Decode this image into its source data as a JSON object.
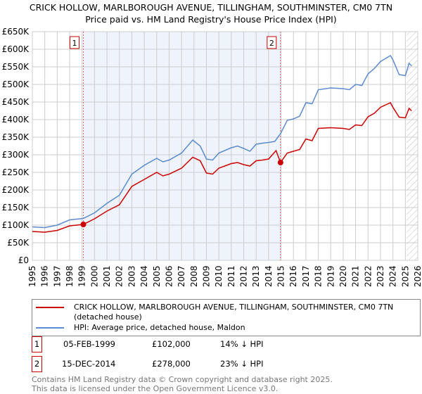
{
  "chart_data": {
    "type": "line",
    "title": "CRICK HOLLOW, MARLBOROUGH AVENUE, TILLINGHAM, SOUTHMINSTER, CM0 7TN",
    "subtitle": "Price paid vs. HM Land Registry's House Price Index (HPI)",
    "xlim": [
      1995,
      2026
    ],
    "ylim": [
      0,
      650000
    ],
    "x_ticks": [
      "1995",
      "1996",
      "1997",
      "1998",
      "1999",
      "2000",
      "2001",
      "2002",
      "2003",
      "2004",
      "2005",
      "2006",
      "2007",
      "2008",
      "2009",
      "2010",
      "2011",
      "2012",
      "2013",
      "2014",
      "2015",
      "2016",
      "2017",
      "2018",
      "2019",
      "2020",
      "2021",
      "2022",
      "2023",
      "2024",
      "2025",
      "2026"
    ],
    "y_ticks": [
      {
        "v": 0,
        "label": "£0"
      },
      {
        "v": 50000,
        "label": "£50K"
      },
      {
        "v": 100000,
        "label": "£100K"
      },
      {
        "v": 150000,
        "label": "£150K"
      },
      {
        "v": 200000,
        "label": "£200K"
      },
      {
        "v": 250000,
        "label": "£250K"
      },
      {
        "v": 300000,
        "label": "£300K"
      },
      {
        "v": 350000,
        "label": "£350K"
      },
      {
        "v": 400000,
        "label": "£400K"
      },
      {
        "v": 450000,
        "label": "£450K"
      },
      {
        "v": 500000,
        "label": "£500K"
      },
      {
        "v": 550000,
        "label": "£550K"
      },
      {
        "v": 600000,
        "label": "£600K"
      },
      {
        "v": 650000,
        "label": "£650K"
      }
    ],
    "grid": true,
    "shaded_range": [
      1999.1,
      2014.96
    ],
    "forecast_hatch_from": 2025.1,
    "series": [
      {
        "name": "CRICK HOLLOW, MARLBOROUGH AVENUE, TILLINGHAM, SOUTHMINSTER, CM0 7TN (detached house)",
        "color": "#cc0000",
        "x": [
          1995,
          1996,
          1997,
          1998,
          1999.1,
          2000,
          2001,
          2002,
          2003,
          2004,
          2005,
          2005.5,
          2006,
          2007,
          2007.9,
          2008.5,
          2009,
          2009.5,
          2010,
          2011,
          2011.5,
          2012,
          2012.5,
          2013,
          2013.5,
          2014,
          2014.6,
          2014.96,
          2015.5,
          2016,
          2016.5,
          2017,
          2017.5,
          2018,
          2019,
          2020,
          2020.5,
          2021,
          2021.5,
          2022,
          2022.5,
          2023,
          2023.8,
          2024,
          2024.5,
          2025,
          2025.3,
          2025.5
        ],
        "y": [
          82000,
          80000,
          85000,
          98000,
          102000,
          118000,
          140000,
          158000,
          210000,
          230000,
          250000,
          240000,
          245000,
          262000,
          293000,
          283000,
          248000,
          245000,
          262000,
          275000,
          278000,
          272000,
          268000,
          283000,
          285000,
          288000,
          312000,
          278000,
          305000,
          310000,
          315000,
          345000,
          340000,
          375000,
          377000,
          375000,
          372000,
          385000,
          383000,
          408000,
          418000,
          435000,
          448000,
          435000,
          407000,
          405000,
          432000,
          425000
        ]
      },
      {
        "name": "HPI: Average price, detached house, Maldon",
        "color": "#5b8bd0",
        "x": [
          1995,
          1996,
          1997,
          1998,
          1999.1,
          2000,
          2001,
          2002,
          2003,
          2004,
          2005,
          2005.5,
          2006,
          2007,
          2007.9,
          2008.5,
          2009,
          2009.5,
          2010,
          2011,
          2011.5,
          2012,
          2012.5,
          2013,
          2013.5,
          2014,
          2014.5,
          2014.96,
          2015.5,
          2016,
          2016.5,
          2017,
          2017.5,
          2018,
          2019,
          2020,
          2020.5,
          2021,
          2021.5,
          2022,
          2022.5,
          2023,
          2023.8,
          2024,
          2024.5,
          2025,
          2025.3,
          2025.5
        ],
        "y": [
          95000,
          93000,
          100000,
          115000,
          119000,
          135000,
          162000,
          185000,
          245000,
          270000,
          290000,
          280000,
          285000,
          305000,
          342000,
          325000,
          288000,
          285000,
          305000,
          320000,
          325000,
          318000,
          310000,
          330000,
          333000,
          335000,
          338000,
          360000,
          398000,
          402000,
          410000,
          448000,
          445000,
          485000,
          490000,
          488000,
          485000,
          500000,
          497000,
          530000,
          545000,
          565000,
          582000,
          570000,
          528000,
          525000,
          560000,
          553000
        ]
      }
    ],
    "sales": [
      {
        "n": "1",
        "x": 1999.1,
        "date": "05-FEB-1999",
        "price": 102000,
        "price_label": "£102,000",
        "hpi": "14% ↓ HPI"
      },
      {
        "n": "2",
        "x": 2014.96,
        "date": "15-DEC-2014",
        "price": 278000,
        "price_label": "£278,000",
        "hpi": "23% ↓ HPI"
      }
    ]
  },
  "footer": [
    "Contains HM Land Registry data © Crown copyright and database right 2025.",
    "This data is licensed under the Open Government Licence v3.0."
  ]
}
